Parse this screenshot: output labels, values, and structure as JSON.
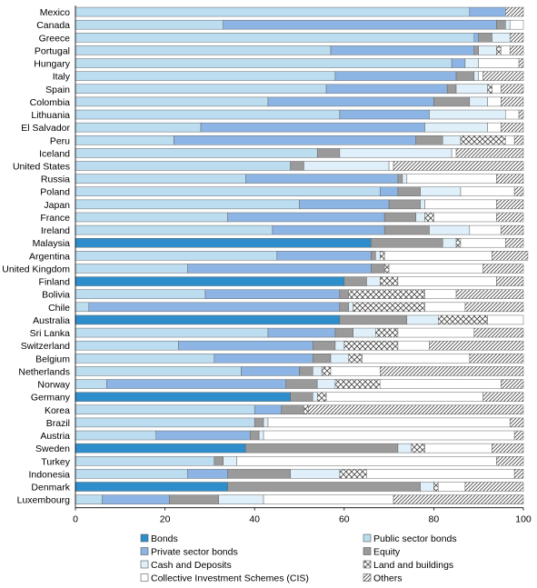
{
  "chart_data": {
    "type": "bar",
    "orientation": "horizontal",
    "stacked": true,
    "title": "",
    "xlabel": "",
    "ylabel": "",
    "xlim": [
      0,
      100
    ],
    "xticks": [
      0,
      20,
      40,
      60,
      80,
      100
    ],
    "grid": false,
    "legend_position": "bottom",
    "categories": [
      "Mexico",
      "Canada",
      "Greece",
      "Portugal",
      "Hungary",
      "Italy",
      "Spain",
      "Colombia",
      "Lithuania",
      "El Salvador",
      "Peru",
      "Iceland",
      "United States",
      "Russia",
      "Poland",
      "Japan",
      "France",
      "Ireland",
      "Malaysia",
      "Argentina",
      "United Kingdom",
      "Finland",
      "Bolivia",
      "Chile",
      "Australia",
      "Sri Lanka",
      "Switzerland",
      "Belgium",
      "Netherlands",
      "Norway",
      "Germany",
      "Korea",
      "Brazil",
      "Austria",
      "Sweden",
      "Turkey",
      "Indonesia",
      "Denmark",
      "Luxembourg"
    ],
    "series": [
      {
        "name": "Bonds",
        "color": "#2e8ecb",
        "pattern": "solid",
        "values": [
          0,
          0,
          0,
          0,
          0,
          0,
          0,
          0,
          0,
          0,
          0,
          0,
          0,
          0,
          0,
          0,
          0,
          0,
          66,
          0,
          0,
          60,
          0,
          0,
          59,
          0,
          0,
          0,
          0,
          0,
          48,
          0,
          0,
          0,
          38,
          0,
          0,
          34,
          0
        ]
      },
      {
        "name": "Public sector bonds",
        "color": "#bcdcf0",
        "pattern": "solid",
        "values": [
          88,
          33,
          89,
          57,
          84,
          58,
          56,
          43,
          59,
          28,
          22,
          54,
          48,
          38,
          68,
          50,
          34,
          44,
          0,
          45,
          25,
          0,
          29,
          3,
          0,
          43,
          23,
          31,
          37,
          7,
          0,
          40,
          40,
          18,
          0,
          31,
          25,
          0,
          6
        ]
      },
      {
        "name": "Private sector bonds",
        "color": "#8cb4e4",
        "pattern": "solid",
        "values": [
          8,
          61,
          1,
          32,
          3,
          27,
          27,
          37,
          20,
          50,
          54,
          0,
          0,
          34,
          4,
          20,
          35,
          25,
          0,
          21,
          41,
          0,
          30,
          56,
          0,
          15,
          30,
          22,
          13,
          40,
          0,
          6,
          0,
          21,
          0,
          0,
          9,
          0,
          15
        ]
      },
      {
        "name": "Equity",
        "color": "#9a9a9a",
        "pattern": "solid",
        "values": [
          0,
          2,
          3,
          1,
          0,
          4,
          2,
          8,
          0,
          0,
          6,
          5,
          3,
          1,
          5,
          7,
          7,
          10,
          16,
          1,
          3,
          5,
          2,
          2,
          15,
          4,
          5,
          4,
          3,
          7,
          5,
          5,
          2,
          2,
          34,
          2,
          14,
          43,
          11
        ]
      },
      {
        "name": "Cash and Deposits",
        "color": "#dff0fa",
        "pattern": "solid",
        "values": [
          0,
          1,
          4,
          4,
          3,
          1,
          7,
          4,
          17,
          14,
          4,
          25,
          19,
          1,
          9,
          1,
          2,
          9,
          3,
          1,
          0,
          3,
          0,
          1,
          7,
          5,
          2,
          4,
          2,
          4,
          1,
          0,
          1,
          1,
          3,
          3,
          11,
          3,
          10
        ]
      },
      {
        "name": "Land and buildings",
        "color": "#ffffff",
        "pattern": "hatch-x",
        "values": [
          0,
          0,
          0,
          1,
          0,
          0,
          1,
          0,
          0,
          0,
          10,
          0,
          0,
          0,
          0,
          0,
          2,
          0,
          1,
          1,
          1,
          4,
          17,
          16,
          11,
          5,
          12,
          3,
          2,
          10,
          2,
          1,
          0,
          0,
          3,
          0,
          6,
          1,
          0
        ]
      },
      {
        "name": "Collective Investment Schemes (CIS)",
        "color": "#ffffff",
        "pattern": "solid",
        "values": [
          0,
          3,
          0,
          2,
          9,
          1,
          2,
          3,
          3,
          3,
          2,
          1,
          1,
          20,
          12,
          16,
          14,
          7,
          10,
          24,
          21,
          22,
          7,
          9,
          8,
          17,
          7,
          24,
          11,
          27,
          35,
          0,
          54,
          56,
          15,
          58,
          33,
          6,
          29
        ]
      },
      {
        "name": "Others",
        "color": "#ffffff",
        "pattern": "hatch-diag",
        "values": [
          4,
          0,
          3,
          3,
          1,
          9,
          5,
          5,
          1,
          5,
          2,
          15,
          29,
          6,
          2,
          6,
          6,
          5,
          4,
          8,
          9,
          6,
          15,
          13,
          0,
          11,
          21,
          12,
          32,
          5,
          9,
          48,
          3,
          2,
          7,
          6,
          2,
          13,
          29
        ]
      }
    ]
  }
}
